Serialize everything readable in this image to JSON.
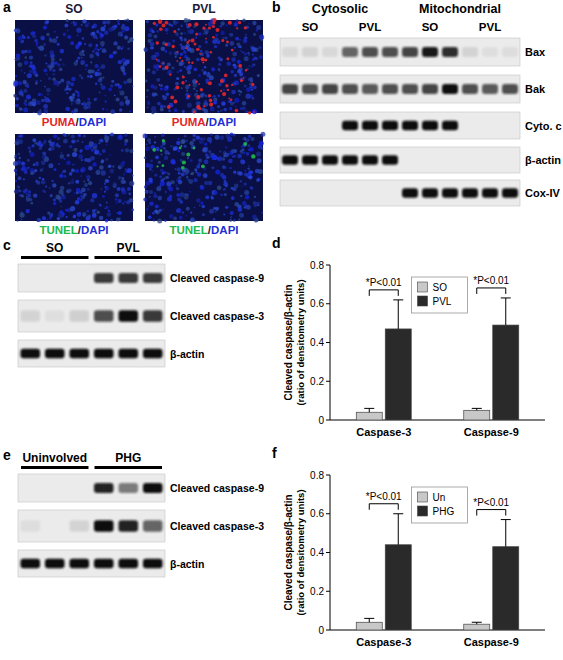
{
  "panels": {
    "a": {
      "label": "a",
      "columns": [
        "SO",
        "PVL"
      ],
      "rows": [
        {
          "stain": "PUMA",
          "color": "#e4262a",
          "separator": "/",
          "counterstain": "DAPI",
          "counter_color": "#1e2fd6"
        },
        {
          "stain": "TUNEL",
          "color": "#22b84a",
          "separator": "/",
          "counterstain": "DAPI",
          "counter_color": "#1e2fd6"
        }
      ]
    },
    "b": {
      "label": "b",
      "fractions": [
        {
          "name": "Cytosolic",
          "groups": [
            "SO",
            "PVL"
          ]
        },
        {
          "name": "Mitochondrial",
          "groups": [
            "SO",
            "PVL"
          ]
        }
      ],
      "proteins": [
        "Bax",
        "Bak",
        "Cyto. c",
        "β-actin",
        "Cox-IV"
      ]
    },
    "c": {
      "label": "c",
      "groups": [
        "SO",
        "PVL"
      ],
      "proteins": [
        "Cleaved caspase-9",
        "Cleaved caspase-3",
        "β-actin"
      ]
    },
    "d": {
      "label": "d"
    },
    "e": {
      "label": "e",
      "groups": [
        "Uninvolved",
        "PHG"
      ],
      "proteins": [
        "Cleaved caspase-9",
        "Cleaved caspase-3",
        "β-actin"
      ]
    },
    "f": {
      "label": "f"
    }
  },
  "chart_data": [
    {
      "type": "bar",
      "y_label": [
        "Cleaved caspase/β-actin",
        "(ratio of densitometry units)"
      ],
      "categories": [
        "Caspase-3",
        "Caspase-9"
      ],
      "series": [
        {
          "name": "SO",
          "color": "#c8c8c8",
          "values": [
            0.04,
            0.05
          ],
          "errors": [
            0.02,
            0.01
          ]
        },
        {
          "name": "PVL",
          "color": "#2a2a2a",
          "values": [
            0.47,
            0.49
          ],
          "errors": [
            0.15,
            0.14
          ]
        }
      ],
      "annotations": [
        "*P<0.01",
        "*P<0.01"
      ],
      "ylim": [
        0,
        0.8
      ],
      "yticks": [
        0,
        0.2,
        0.4,
        0.6,
        0.8
      ],
      "legend": "top"
    },
    {
      "type": "bar",
      "y_label": [
        "Cleaved caspase/β-actin",
        "(ratio of densitometry units)"
      ],
      "categories": [
        "Caspase-3",
        "Caspase-9"
      ],
      "series": [
        {
          "name": "Un",
          "color": "#c8c8c8",
          "values": [
            0.04,
            0.03
          ],
          "errors": [
            0.02,
            0.01
          ]
        },
        {
          "name": "PHG",
          "color": "#2a2a2a",
          "values": [
            0.44,
            0.43
          ],
          "errors": [
            0.16,
            0.14
          ]
        }
      ],
      "annotations": [
        "*P<0.01",
        "*P<0.01"
      ],
      "ylim": [
        0,
        0.8
      ],
      "yticks": [
        0,
        0.2,
        0.4,
        0.6,
        0.8
      ],
      "legend": "top"
    }
  ]
}
